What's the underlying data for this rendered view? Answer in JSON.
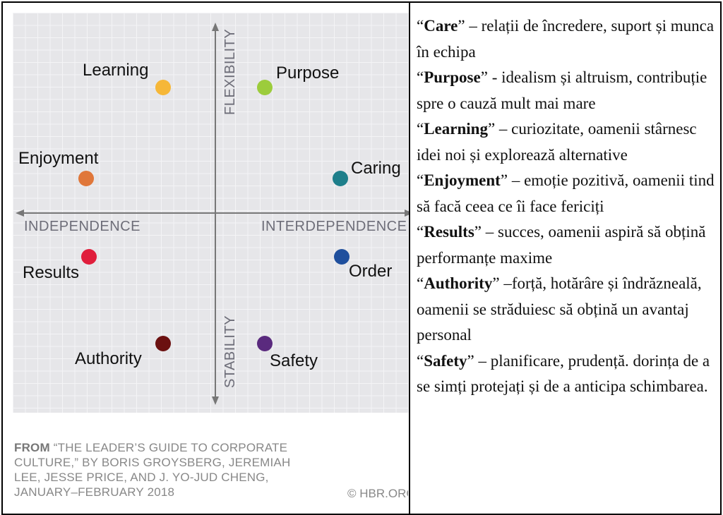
{
  "diagram": {
    "axes": {
      "top": "FLEXIBILITY",
      "bottom": "STABILITY",
      "left": "INDEPENDENCE",
      "right": "INTERDEPENDENCE"
    },
    "nodes": [
      {
        "label": "Learning",
        "color": "#f6b738"
      },
      {
        "label": "Purpose",
        "color": "#9ccc3c"
      },
      {
        "label": "Enjoyment",
        "color": "#e0773a"
      },
      {
        "label": "Caring",
        "color": "#1e7f8b"
      },
      {
        "label": "Results",
        "color": "#e01e3c"
      },
      {
        "label": "Order",
        "color": "#1f4f9d"
      },
      {
        "label": "Authority",
        "color": "#6b1010"
      },
      {
        "label": "Safety",
        "color": "#5a2a7e"
      }
    ]
  },
  "source": {
    "from": "FROM",
    "citation": "“THE LEADER’S GUIDE TO CORPORATE CULTURE,” BY BORIS GROYSBERG, JEREMIAH LEE, JESSE PRICE, AND J. YO-JUD CHENG, JANUARY–FEBRUARY 2018",
    "copyright": "© HBR.ORG"
  },
  "definitions": [
    {
      "open": "“",
      "term": "Care",
      "close": "”",
      "text": " – relații de încredere, suport și munca în echipa"
    },
    {
      "open": "“",
      "term": "Purpose",
      "close": "”",
      "text": " - idealism și altruism, contribuție spre o cauză mult mai mare"
    },
    {
      "open": "“",
      "term": "Learning",
      "close": "”",
      "text": " – curiozitate, oamenii stârnesc idei noi și explorează alternative"
    },
    {
      "open": "“",
      "term": "Enjoyment",
      "close": "”",
      "text": " – emoție pozitivă, oamenii tind să facă ceea ce îi face fericiți"
    },
    {
      "open": "“",
      "term": "Results",
      "close": "”",
      "text": " – succes, oamenii aspiră să obțină performanțe maxime"
    },
    {
      "open": "“",
      "term": "Authority",
      "close": "”",
      "text": " –forță, hotărâre și îndrăzneală, oamenii se străduiesc să obțină un avantaj personal"
    },
    {
      "open": "“",
      "term": "Safety",
      "close": "”",
      "text": " – planificare, prudență. dorința de a se simți protejați și de a anticipa schimbarea."
    }
  ]
}
